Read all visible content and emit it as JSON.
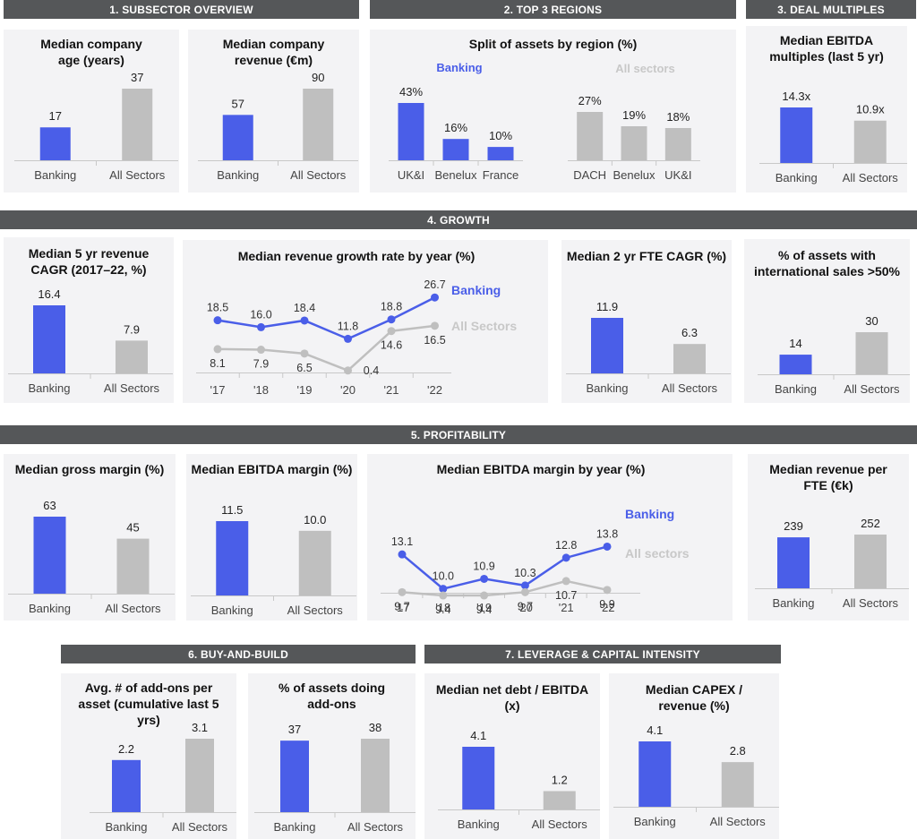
{
  "colors": {
    "banking": "#4a5ee8",
    "all": "#bfbfbf",
    "header_bg": "#555759"
  },
  "headers": {
    "h1": "1. SUBSECTOR OVERVIEW",
    "h2": "2. TOP 3 REGIONS",
    "h3": "3. DEAL MULTIPLES",
    "h4": "4. GROWTH",
    "h5": "5.  PROFITABILITY",
    "h6": "6. BUY-AND-BUILD",
    "h7": "7. LEVERAGE & CAPITAL INTENSITY"
  },
  "titles": {
    "age": "Median company age (years)",
    "revenue": "Median company revenue (€m)",
    "regions": "Split of assets by region (%)",
    "ebitda_mult": "Median EBITDA multiples (last 5 yr)",
    "cagr5": "Median 5 yr revenue CAGR (2017–22, %)",
    "growth_year": "Median revenue growth rate by year (%)",
    "fte_cagr": "Median 2 yr FTE CAGR (%)",
    "intl": "% of assets with international sales >50%",
    "gross": "Median gross margin (%)",
    "ebitda_margin": "Median EBITDA margin (%)",
    "ebitda_year": "Median EBITDA margin by year (%)",
    "rev_fte": "Median revenue per FTE (€k)",
    "addons": "Avg. # of add-ons per asset (cumulative last 5 yrs)",
    "doing_addons": "% of assets doing add-ons",
    "net_debt": "Median net debt / EBITDA (x)",
    "capex": "Median CAPEX / revenue (%)"
  },
  "region_labels": {
    "banking": "Banking",
    "all": "All sectors"
  },
  "chart_data": [
    {
      "id": "age",
      "type": "bar",
      "categories": [
        "Banking",
        "All Sectors"
      ],
      "values": [
        17,
        37
      ],
      "labels": [
        "17",
        "37"
      ]
    },
    {
      "id": "revenue",
      "type": "bar",
      "categories": [
        "Banking",
        "All Sectors"
      ],
      "values": [
        57,
        90
      ],
      "labels": [
        "57",
        "90"
      ]
    },
    {
      "id": "regions_banking",
      "type": "bar",
      "categories": [
        "UK&I",
        "Benelux",
        "France"
      ],
      "values": [
        43,
        16,
        10
      ],
      "labels": [
        "43%",
        "16%",
        "10%"
      ]
    },
    {
      "id": "regions_all",
      "type": "bar",
      "categories": [
        "DACH",
        "Benelux",
        "UK&I"
      ],
      "values": [
        27,
        19,
        18
      ],
      "labels": [
        "27%",
        "19%",
        "18%"
      ]
    },
    {
      "id": "ebitda_mult",
      "type": "bar",
      "categories": [
        "Banking",
        "All Sectors"
      ],
      "values": [
        14.3,
        10.9
      ],
      "labels": [
        "14.3x",
        "10.9x"
      ]
    },
    {
      "id": "cagr5",
      "type": "bar",
      "categories": [
        "Banking",
        "All Sectors"
      ],
      "values": [
        16.4,
        7.9
      ],
      "labels": [
        "16.4",
        "7.9"
      ]
    },
    {
      "id": "growth_year",
      "type": "line",
      "x": [
        "'17",
        "'18",
        "'19",
        "'20",
        "'21",
        "'22"
      ],
      "series": [
        {
          "name": "Banking",
          "values": [
            18.5,
            16.0,
            18.4,
            11.8,
            18.8,
            26.7
          ],
          "labels": [
            "18.5",
            "16.0",
            "18.4",
            "11.8",
            "18.8",
            "26.7"
          ]
        },
        {
          "name": "All Sectors",
          "values": [
            8.1,
            7.9,
            6.5,
            0.4,
            14.6,
            16.5
          ],
          "labels": [
            "8.1",
            "7.9",
            "6.5",
            "0.4",
            "14.6",
            "16.5"
          ]
        }
      ]
    },
    {
      "id": "fte_cagr",
      "type": "bar",
      "categories": [
        "Banking",
        "All Sectors"
      ],
      "values": [
        11.9,
        6.3
      ],
      "labels": [
        "11.9",
        "6.3"
      ]
    },
    {
      "id": "intl",
      "type": "bar",
      "categories": [
        "Banking",
        "All Sectors"
      ],
      "values": [
        14,
        30
      ],
      "labels": [
        "14",
        "30"
      ]
    },
    {
      "id": "gross",
      "type": "bar",
      "categories": [
        "Banking",
        "All Sectors"
      ],
      "values": [
        63,
        45
      ],
      "labels": [
        "63",
        "45"
      ]
    },
    {
      "id": "ebitda_margin",
      "type": "bar",
      "categories": [
        "Banking",
        "All Sectors"
      ],
      "values": [
        11.5,
        10.0
      ],
      "labels": [
        "11.5",
        "10.0"
      ]
    },
    {
      "id": "ebitda_year",
      "type": "line",
      "x": [
        "'17",
        "'18",
        "'19",
        "'20",
        "'21",
        "'22"
      ],
      "series": [
        {
          "name": "Banking",
          "values": [
            13.1,
            10.0,
            10.9,
            10.3,
            12.8,
            13.8
          ],
          "labels": [
            "13.1",
            "10.0",
            "10.9",
            "10.3",
            "12.8",
            "13.8"
          ]
        },
        {
          "name": "All sectors",
          "values": [
            9.7,
            9.4,
            9.4,
            9.7,
            10.7,
            9.9
          ],
          "labels": [
            "9.7",
            "9.4",
            "9.4",
            "9.7",
            "10.7",
            "9.9"
          ]
        }
      ]
    },
    {
      "id": "rev_fte",
      "type": "bar",
      "categories": [
        "Banking",
        "All Sectors"
      ],
      "values": [
        239,
        252
      ],
      "labels": [
        "239",
        "252"
      ]
    },
    {
      "id": "addons",
      "type": "bar",
      "categories": [
        "Banking",
        "All Sectors"
      ],
      "values": [
        2.2,
        3.1
      ],
      "labels": [
        "2.2",
        "3.1"
      ]
    },
    {
      "id": "doing_addons",
      "type": "bar",
      "categories": [
        "Banking",
        "All Sectors"
      ],
      "values": [
        37,
        38
      ],
      "labels": [
        "37",
        "38"
      ]
    },
    {
      "id": "net_debt",
      "type": "bar",
      "categories": [
        "Banking",
        "All Sectors"
      ],
      "values": [
        4.1,
        1.2
      ],
      "labels": [
        "4.1",
        "1.2"
      ]
    },
    {
      "id": "capex",
      "type": "bar",
      "categories": [
        "Banking",
        "All Sectors"
      ],
      "values": [
        4.1,
        2.8
      ],
      "labels": [
        "4.1",
        "2.8"
      ]
    }
  ]
}
